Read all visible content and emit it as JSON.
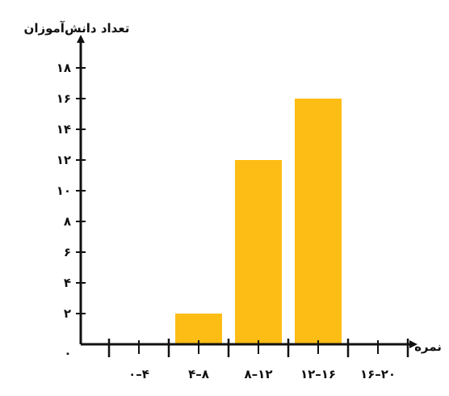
{
  "chart_data": {
    "type": "bar",
    "ylabel": "تعداد دانش‌آموزان",
    "xlabel": "نمره",
    "origin_label": "۰",
    "categories": [
      "۰–۴",
      "۴–۸",
      "۸–۱۲",
      "۱۲–۱۶",
      "۱۶–۲۰"
    ],
    "values": [
      0,
      2,
      12,
      16,
      0
    ],
    "y_ticks": [
      2,
      4,
      6,
      8,
      10,
      12,
      14,
      16,
      18
    ],
    "y_tick_labels": [
      "۲",
      "۴",
      "۶",
      "۸",
      "۱۰",
      "۱۲",
      "۱۴",
      "۱۶",
      "۱۸"
    ],
    "ylim": [
      0,
      18
    ],
    "grid": false,
    "legend": "none",
    "bar_color": "#FDBD14",
    "axis_color": "#111111"
  }
}
